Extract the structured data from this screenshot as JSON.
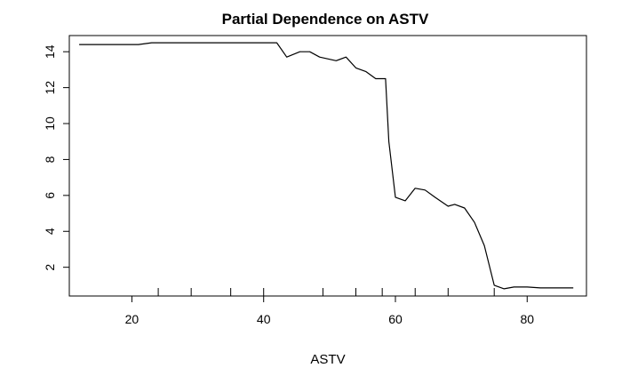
{
  "chart_data": {
    "type": "line",
    "title": "Partial Dependence on ASTV",
    "xlabel": "ASTV",
    "ylabel": "",
    "xlim": [
      10.5,
      89
    ],
    "ylim": [
      0.4,
      14.9
    ],
    "grid": false,
    "legend": "none",
    "line_color": "#000000",
    "x_ticks": [
      20,
      40,
      60,
      80
    ],
    "x_tick_labels": [
      "20",
      "40",
      "60",
      "80"
    ],
    "y_ticks": [
      2,
      4,
      6,
      8,
      10,
      12,
      14
    ],
    "y_tick_labels": [
      "2",
      "4",
      "6",
      "8",
      "10",
      "12",
      "14"
    ],
    "rug": [
      24,
      29,
      35,
      40,
      49,
      54,
      58,
      63,
      68,
      75
    ],
    "series": [
      {
        "x": [
          12,
          21,
          23,
          26,
          30,
          35,
          40,
          42,
          43.5,
          45.5,
          47,
          48.5,
          51,
          52.5,
          54,
          55.5,
          57,
          58.5,
          59,
          60,
          61.5,
          63,
          64.5,
          66,
          68,
          69,
          70.5,
          72,
          73.5,
          75,
          76.5,
          78,
          80,
          82,
          84,
          87
        ],
        "y": [
          14.4,
          14.4,
          14.5,
          14.5,
          14.5,
          14.5,
          14.5,
          14.5,
          13.7,
          14.0,
          14.0,
          13.7,
          13.5,
          13.7,
          13.1,
          12.9,
          12.5,
          12.5,
          9.0,
          5.9,
          5.7,
          6.4,
          6.3,
          5.9,
          5.4,
          5.5,
          5.3,
          4.5,
          3.2,
          1.0,
          0.8,
          0.9,
          0.9,
          0.85,
          0.85,
          0.85
        ]
      }
    ]
  }
}
